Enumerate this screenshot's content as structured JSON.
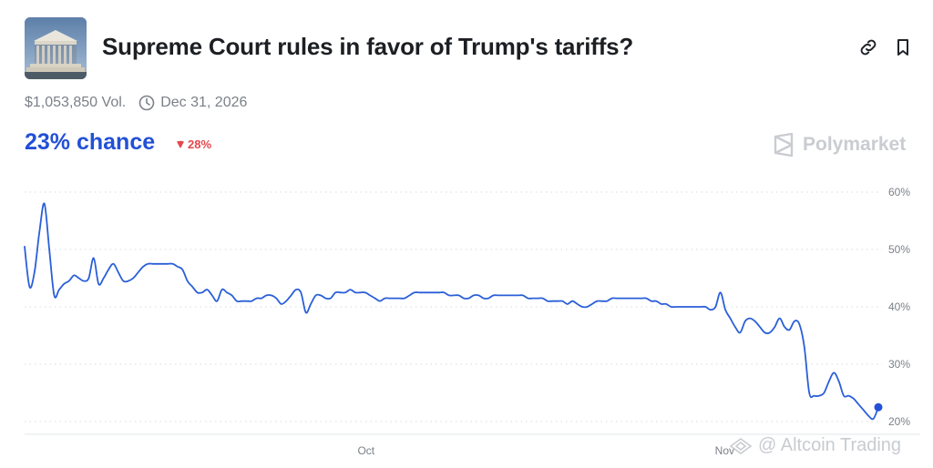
{
  "header": {
    "title": "Supreme Court rules in favor of Trump's tariffs?",
    "thumbnail_icon": "supreme-court-building",
    "link_icon": "link-icon",
    "bookmark_icon": "bookmark-icon"
  },
  "meta": {
    "volume": "$1,053,850 Vol.",
    "end_date": "Dec 31, 2026"
  },
  "odds": {
    "chance": "23% chance",
    "change": "28%",
    "change_direction": "down"
  },
  "brand": {
    "name": "Polymarket"
  },
  "watermark": {
    "text": "@ Altcoin Trading"
  },
  "colors": {
    "accent": "#2250d6",
    "line": "#2a5fd8",
    "down": "#e5484d",
    "grid": "#d6d9de",
    "muted": "#7b8088"
  },
  "chart_data": {
    "type": "line",
    "ylim": [
      20,
      60
    ],
    "y_ticks": [
      60,
      50,
      40,
      30,
      20
    ],
    "y_tick_labels": [
      "60%",
      "50%",
      "40%",
      "30%",
      "20%"
    ],
    "x_tick_labels": [
      "Oct",
      "Nov"
    ],
    "x_tick_positions": [
      0.4,
      0.82
    ],
    "grid": true,
    "grid_style": "dotted",
    "series": [
      {
        "values": [
          50.5,
          43.5,
          46,
          53,
          58,
          50,
          42,
          43,
          44,
          44.5,
          45.5,
          45,
          44.5,
          45,
          48.5,
          44,
          45,
          46.5,
          47.5,
          46,
          44.5,
          44.5,
          45,
          46,
          47,
          47.5,
          47.5,
          47.5,
          47.5,
          47.5,
          47.5,
          47,
          46.5,
          44.5,
          43.5,
          42.5,
          42.5,
          43,
          42,
          41,
          43,
          42.5,
          42,
          41,
          41,
          41,
          41,
          41.5,
          41.5,
          42,
          42,
          41.5,
          40.5,
          41,
          42,
          43,
          42.5,
          39,
          40.5,
          42,
          42,
          41.5,
          41.5,
          42.5,
          42.5,
          42.5,
          43,
          42.5,
          42.5,
          42.5,
          42,
          41.5,
          41,
          41.5,
          41.5,
          41.5,
          41.5,
          41.5,
          42,
          42.5,
          42.5,
          42.5,
          42.5,
          42.5,
          42.5,
          42.5,
          42,
          42,
          42,
          41.5,
          41.5,
          42,
          42,
          41.5,
          41.5,
          42,
          42,
          42,
          42,
          42,
          42,
          42,
          41.5,
          41.5,
          41.5,
          41.5,
          41,
          41,
          41,
          41,
          40.5,
          41,
          40.5,
          40,
          40,
          40.5,
          41,
          41,
          41,
          41.5,
          41.5,
          41.5,
          41.5,
          41.5,
          41.5,
          41.5,
          41.5,
          41,
          41,
          40.5,
          40.5,
          40,
          40,
          40,
          40,
          40,
          40,
          40,
          40,
          39.5,
          40,
          42.5,
          39.5,
          38,
          36.5,
          35.5,
          37.5,
          38,
          37.5,
          36.5,
          35.5,
          35.5,
          36.5,
          38,
          36.5,
          36,
          37.5,
          37,
          33,
          25,
          24.5,
          24.5,
          25,
          27,
          28.5,
          27,
          24.5,
          24.5,
          24,
          23,
          22,
          21,
          20.5,
          22.5
        ]
      }
    ]
  }
}
